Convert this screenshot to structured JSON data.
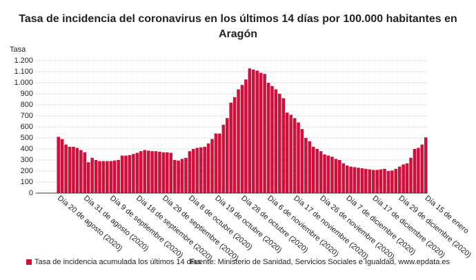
{
  "chart_data": {
    "type": "bar",
    "title": "Tasa de incidencia del coronavirus en los últimos 14 días por 100.000 habitantes en Aragón",
    "y_label": "Tasa",
    "categories": [
      "Día 20 de agosto (2020)",
      null,
      null,
      null,
      null,
      null,
      null,
      "Día 31 de agosto (2020)",
      null,
      null,
      null,
      null,
      null,
      null,
      "Día 9 de septiembre (2020)",
      null,
      null,
      null,
      null,
      null,
      null,
      "Día 18 de septiembre (2020)",
      null,
      null,
      null,
      null,
      null,
      null,
      "Día 29 de septiembre (2020)",
      null,
      null,
      null,
      null,
      null,
      null,
      "Día 8 de octubre (2020)",
      null,
      null,
      null,
      null,
      null,
      null,
      "Día 19 de octubre (2020)",
      null,
      null,
      null,
      null,
      null,
      null,
      "Día 28 de octubre (2020)",
      null,
      null,
      null,
      null,
      null,
      null,
      "Día 6 de noviembre (2020)",
      null,
      null,
      null,
      null,
      null,
      null,
      "Día 17 de noviembre (2020)",
      null,
      null,
      null,
      null,
      null,
      null,
      "Día 26 de noviembre (2020)",
      null,
      null,
      null,
      null,
      null,
      null,
      "Día 7 de diciembre (2020)",
      null,
      null,
      null,
      null,
      null,
      null,
      "Día 17 de diciembre (2020)",
      null,
      null,
      null,
      null,
      null,
      null,
      "Día 29 de diciembre (2020)",
      null,
      null,
      null,
      null,
      null,
      null,
      "Día 15 de enero"
    ],
    "series": [
      {
        "name": "Tasa de incidencia acumulada los últimos 14 días",
        "color": "#d0103a",
        "values": [
          510,
          490,
          440,
          420,
          420,
          410,
          390,
          370,
          280,
          320,
          300,
          290,
          290,
          290,
          290,
          295,
          300,
          340,
          340,
          345,
          355,
          365,
          380,
          390,
          385,
          380,
          380,
          375,
          370,
          370,
          365,
          300,
          295,
          310,
          320,
          380,
          400,
          410,
          415,
          420,
          450,
          490,
          540,
          540,
          620,
          680,
          820,
          870,
          940,
          980,
          1030,
          1130,
          1120,
          1110,
          1090,
          1080,
          1000,
          970,
          940,
          900,
          860,
          730,
          710,
          680,
          640,
          580,
          500,
          470,
          420,
          400,
          380,
          350,
          340,
          330,
          310,
          300,
          270,
          250,
          240,
          235,
          230,
          225,
          220,
          215,
          210,
          210,
          215,
          220,
          200,
          205,
          220,
          240,
          260,
          270,
          320,
          400,
          410,
          440,
          505
        ]
      }
    ],
    "ylim": [
      0,
      1200
    ],
    "yticks": [
      0,
      100,
      200,
      300,
      400,
      500,
      600,
      700,
      800,
      900,
      {
        "value": 1000,
        "label": "1.000"
      },
      {
        "value": 1100,
        "label": "1.100"
      },
      {
        "value": 1200,
        "label": "1.200"
      }
    ],
    "grid": true,
    "legend": "bottom-left",
    "source": "Fuente: Ministerio de Sanidad, Servicios Sociales e Igualdad, www.epdata.es"
  }
}
